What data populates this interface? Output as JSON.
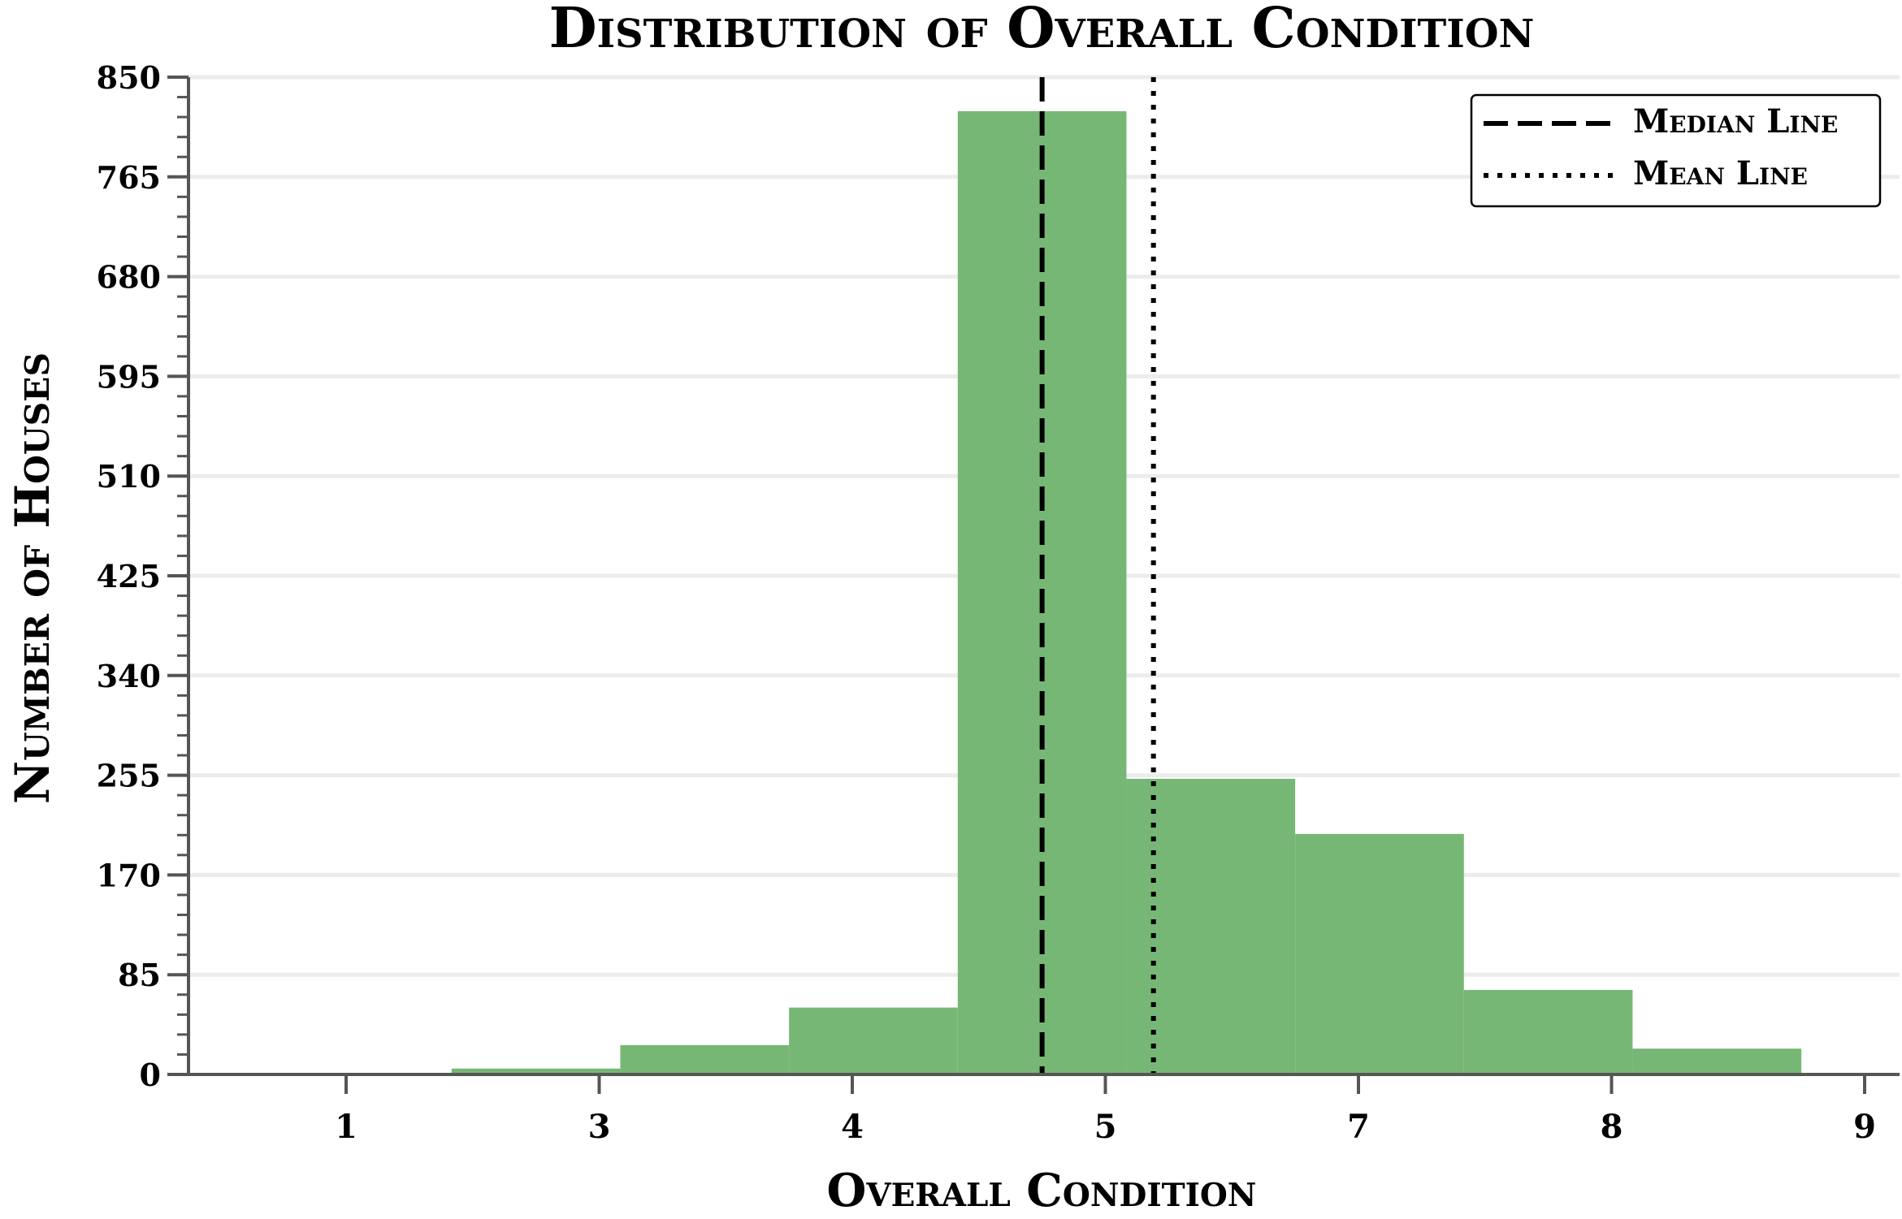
{
  "chart_data": {
    "type": "bar",
    "title": "Distribution of Overall Condition",
    "xlabel": "Overall Condition",
    "ylabel": "Number of Houses",
    "x_ticks": [
      "1",
      "3",
      "4",
      "5",
      "7",
      "8",
      "9"
    ],
    "x_tick_values": [
      1.0,
      2.0,
      3.0,
      4.0,
      5.0,
      6.0,
      7.0
    ],
    "y_ticks": [
      0,
      85,
      170,
      255,
      340,
      425,
      510,
      595,
      680,
      765,
      850
    ],
    "xlim": [
      0.37,
      7.0
    ],
    "ylim": [
      0,
      850
    ],
    "bars": [
      {
        "x0": 1.0,
        "x1": 1.4167,
        "value": 1
      },
      {
        "x0": 1.4167,
        "x1": 2.0833,
        "value": 5
      },
      {
        "x0": 2.0833,
        "x1": 2.75,
        "value": 25
      },
      {
        "x0": 2.75,
        "x1": 3.4167,
        "value": 57
      },
      {
        "x0": 3.4167,
        "x1": 4.0833,
        "value": 821
      },
      {
        "x0": 4.0833,
        "x1": 4.75,
        "value": 252
      },
      {
        "x0": 4.75,
        "x1": 5.4167,
        "value": 205
      },
      {
        "x0": 5.4167,
        "x1": 6.0833,
        "value": 72
      },
      {
        "x0": 6.0833,
        "x1": 6.75,
        "value": 22
      }
    ],
    "bar_color": "#77b776",
    "median_line": 3.75,
    "mean_line": 4.19,
    "legend": {
      "position": "top-right",
      "entries": [
        {
          "label": "Median Line",
          "style": "dashed"
        },
        {
          "label": "Mean Line",
          "style": "dotted"
        }
      ]
    },
    "grid": "horizontal"
  }
}
